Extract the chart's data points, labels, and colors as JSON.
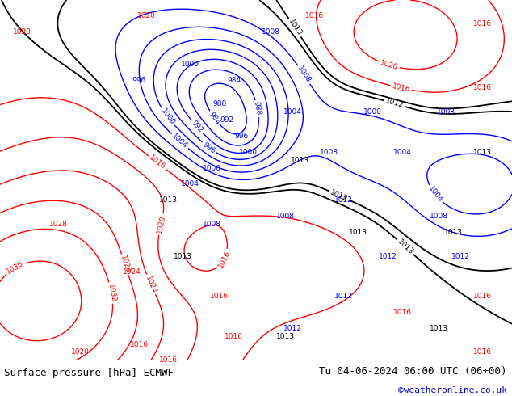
{
  "title_left": "Surface pressure [hPa] ECMWF",
  "title_right": "Tu 04-06-2024 06:00 UTC (06+00)",
  "credit": "©weatheronline.co.uk",
  "bg_color": "#c8ddc8",
  "fig_width": 6.34,
  "fig_height": 4.9,
  "dpi": 100,
  "bottom_bar_color": "#d0d0d0",
  "bottom_bar_height": 0.09,
  "credit_color": "#0000cc",
  "title_color": "#000000",
  "title_fontsize": 9.0,
  "credit_fontsize": 8.0,
  "levels_red": [
    1016,
    1020,
    1024,
    1028,
    1032,
    1036
  ],
  "levels_blue": [
    984,
    988,
    992,
    996,
    1000,
    1004,
    1008
  ],
  "levels_black": [
    1012,
    1013
  ]
}
